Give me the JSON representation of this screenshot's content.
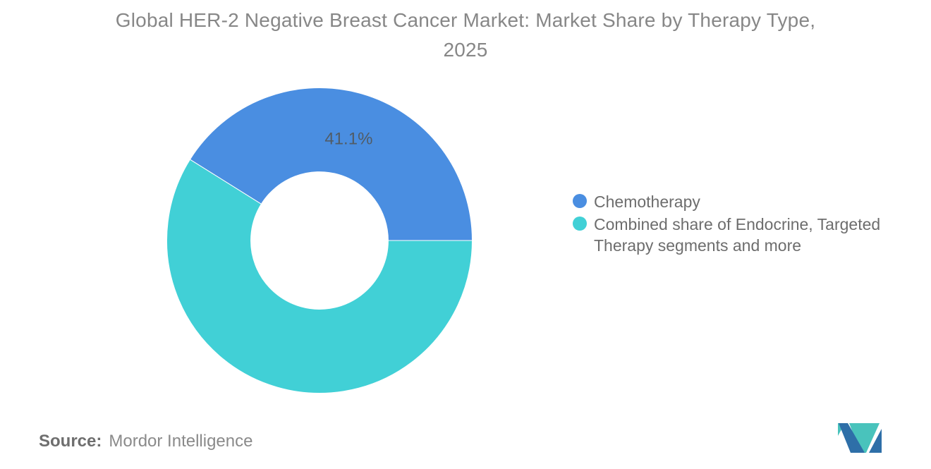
{
  "header": {
    "title": "Global HER-2 Negative Breast Cancer Market: Market Share by Therapy Type, 2025",
    "title_lines": [
      "Global HER-2 Negative Breast Cancer Market: Market Share by Therapy Type,",
      "2025"
    ]
  },
  "chart_data": {
    "type": "pie",
    "subtype": "donut",
    "title": "Global HER-2 Negative Breast Cancer Market: Market Share by Therapy Type, 2025",
    "units": "percent",
    "legend_position": "right",
    "rotation_conic_deg": 302.04,
    "inner_radius_ratio": 0.45,
    "data_label_color": "#515c66",
    "slices": [
      {
        "label": "Chemotherapy",
        "label_lines": [
          "Chemotherapy"
        ],
        "value": 41.1,
        "color": "#4a8ee1",
        "data_label": "41.1%"
      },
      {
        "label": "Combined share of Endocrine, Targeted Therapy segments and more",
        "label_lines": [
          "Combined share of Endocrine, Targeted",
          "Therapy segments and more"
        ],
        "value": 58.9,
        "color": "#41d0d6",
        "data_label": ""
      }
    ]
  },
  "footer": {
    "source_label": "Source:",
    "source_value": "Mordor Intelligence",
    "logo": {
      "name": "mordor-intelligence-logo",
      "blue": "#2e6fa8",
      "teal": "#49c3bc"
    }
  }
}
